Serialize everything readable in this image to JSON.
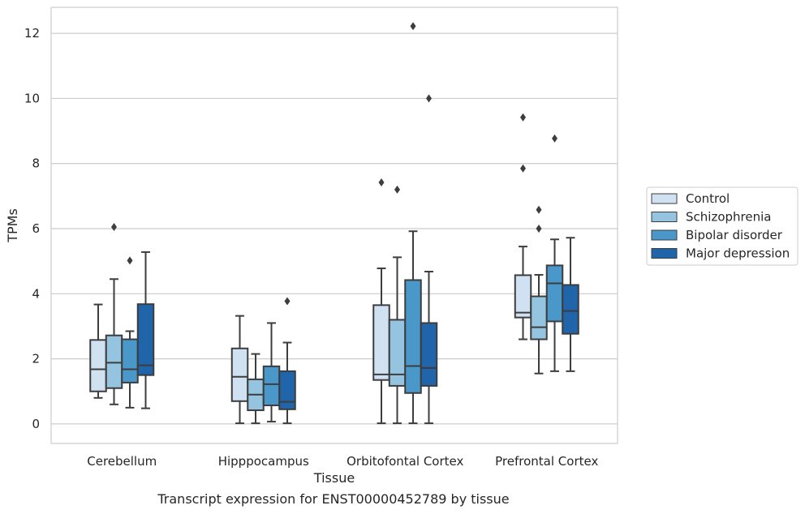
{
  "chart_data": {
    "type": "box",
    "caption": "Transcript expression for ENST00000452789 by tissue",
    "xlabel": "Tissue",
    "ylabel": "TPMs",
    "ylim": [
      -0.6,
      12.8
    ],
    "yticks": [
      0,
      2,
      4,
      6,
      8,
      10,
      12
    ],
    "grid": "horizontal",
    "legend_position": "right",
    "categories": [
      "Cerebellum",
      "Hipppocampus",
      "Orbitofontal Cortex",
      "Prefrontal Cortex"
    ],
    "series": [
      {
        "name": "Control",
        "color": "#d0e1f2",
        "boxes": [
          {
            "whisker_low": 0.8,
            "q1": 1.0,
            "median": 1.68,
            "q3": 2.58,
            "whisker_high": 3.67,
            "outliers": []
          },
          {
            "whisker_low": 0.02,
            "q1": 0.7,
            "median": 1.45,
            "q3": 2.32,
            "whisker_high": 3.32,
            "outliers": []
          },
          {
            "whisker_low": 0.02,
            "q1": 1.35,
            "median": 1.52,
            "q3": 3.65,
            "whisker_high": 4.78,
            "outliers": [
              7.42
            ]
          },
          {
            "whisker_low": 2.6,
            "q1": 3.27,
            "median": 3.42,
            "q3": 4.57,
            "whisker_high": 5.45,
            "outliers": [
              7.85,
              9.42
            ]
          }
        ]
      },
      {
        "name": "Schizophrenia",
        "color": "#94c4df",
        "boxes": [
          {
            "whisker_low": 0.6,
            "q1": 1.1,
            "median": 1.88,
            "q3": 2.72,
            "whisker_high": 4.45,
            "outliers": [
              6.05
            ]
          },
          {
            "whisker_low": 0.02,
            "q1": 0.42,
            "median": 0.9,
            "q3": 1.37,
            "whisker_high": 2.15,
            "outliers": []
          },
          {
            "whisker_low": 0.02,
            "q1": 1.17,
            "median": 1.52,
            "q3": 3.2,
            "whisker_high": 5.12,
            "outliers": [
              7.2
            ]
          },
          {
            "whisker_low": 1.55,
            "q1": 2.6,
            "median": 2.97,
            "q3": 3.92,
            "whisker_high": 4.58,
            "outliers": [
              6.0,
              6.58
            ]
          }
        ]
      },
      {
        "name": "Bipolar disorder",
        "color": "#4a98c9",
        "boxes": [
          {
            "whisker_low": 0.5,
            "q1": 1.27,
            "median": 1.68,
            "q3": 2.6,
            "whisker_high": 2.85,
            "outliers": [
              5.02
            ]
          },
          {
            "whisker_low": 0.07,
            "q1": 0.57,
            "median": 1.22,
            "q3": 1.77,
            "whisker_high": 3.1,
            "outliers": []
          },
          {
            "whisker_low": 0.02,
            "q1": 0.95,
            "median": 1.78,
            "q3": 4.42,
            "whisker_high": 5.92,
            "outliers": [
              12.22
            ]
          },
          {
            "whisker_low": 1.62,
            "q1": 3.15,
            "median": 4.32,
            "q3": 4.87,
            "whisker_high": 5.67,
            "outliers": [
              8.77
            ]
          }
        ]
      },
      {
        "name": "Major depression",
        "color": "#2064aa",
        "boxes": [
          {
            "whisker_low": 0.48,
            "q1": 1.5,
            "median": 1.8,
            "q3": 3.68,
            "whisker_high": 5.28,
            "outliers": []
          },
          {
            "whisker_low": 0.02,
            "q1": 0.45,
            "median": 0.68,
            "q3": 1.62,
            "whisker_high": 2.5,
            "outliers": [
              3.77
            ]
          },
          {
            "whisker_low": 0.02,
            "q1": 1.17,
            "median": 1.72,
            "q3": 3.1,
            "whisker_high": 4.68,
            "outliers": [
              10.0
            ]
          },
          {
            "whisker_low": 1.62,
            "q1": 2.77,
            "median": 3.47,
            "q3": 4.27,
            "whisker_high": 5.72,
            "outliers": []
          }
        ]
      }
    ]
  }
}
